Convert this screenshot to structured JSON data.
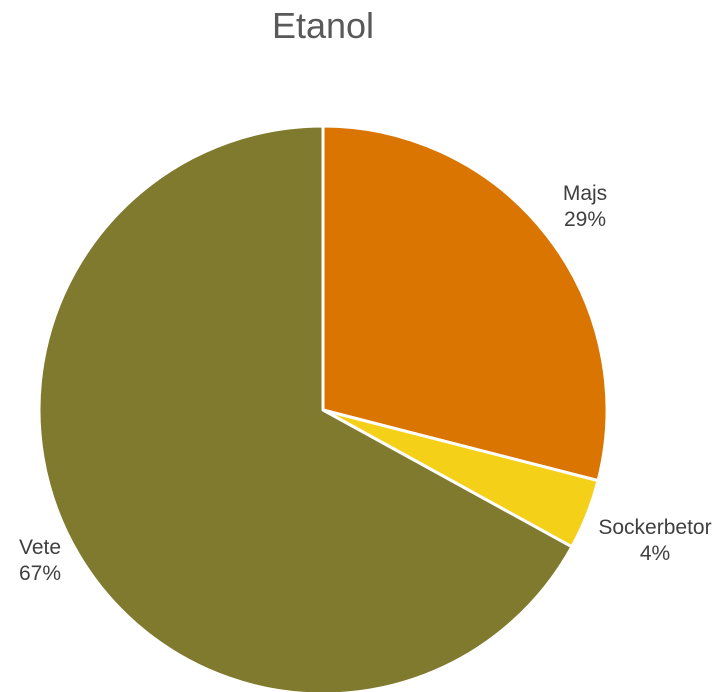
{
  "chart_data": {
    "type": "pie",
    "title": "Etanol",
    "series": [
      {
        "slices": [
          {
            "label": "Majs",
            "value": 29,
            "value_label": "29%",
            "color": "#d97500"
          },
          {
            "label": "Sockerbetor",
            "value": 4,
            "value_label": "4%",
            "color": "#f5d018"
          },
          {
            "label": "Vete",
            "value": 67,
            "value_label": "67%",
            "color": "#7f7a2e"
          }
        ]
      }
    ],
    "start_angle": "12 o'clock",
    "direction": "clockwise",
    "slice_border_color": "#ffffff",
    "legend": "none"
  }
}
